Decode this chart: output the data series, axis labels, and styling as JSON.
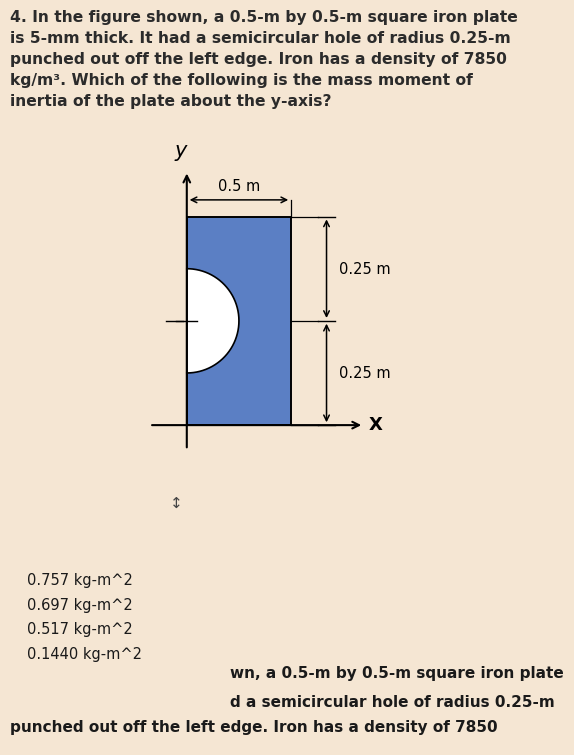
{
  "bg_color": "#f5e6d3",
  "panel_bg": "#ffffff",
  "title_text": "4. In the figure shown, a 0.5-m by 0.5-m square iron plate\nis 5-mm thick. It had a semicircular hole of radius 0.25-m\npunched out off the left edge. Iron has a density of 7850\nkg/m³. Which of the following is the mass moment of\ninertia of the plate about the y-axis?",
  "plate_color": "#5b7fc4",
  "dim_05m_label": "0.5 m",
  "dim_025m_top_label": "0.25 m",
  "dim_025m_bot_label": "0.25 m",
  "x_label": "X",
  "y_label": "y",
  "dropdown_border_color": "#2e7d4f",
  "choices": [
    "0.757 kg-m^2",
    "0.697 kg-m^2",
    "0.517 kg-m^2",
    "0.1440 kg-m^2"
  ],
  "bottom_text_line1": "punched out off the left edge. Iron has a density of 7850",
  "bottom_text_line2": "wn, a 0.5-m by 0.5-m square iron plate",
  "bottom_text_line3": "d a semicircular hole of radius 0.25-m"
}
